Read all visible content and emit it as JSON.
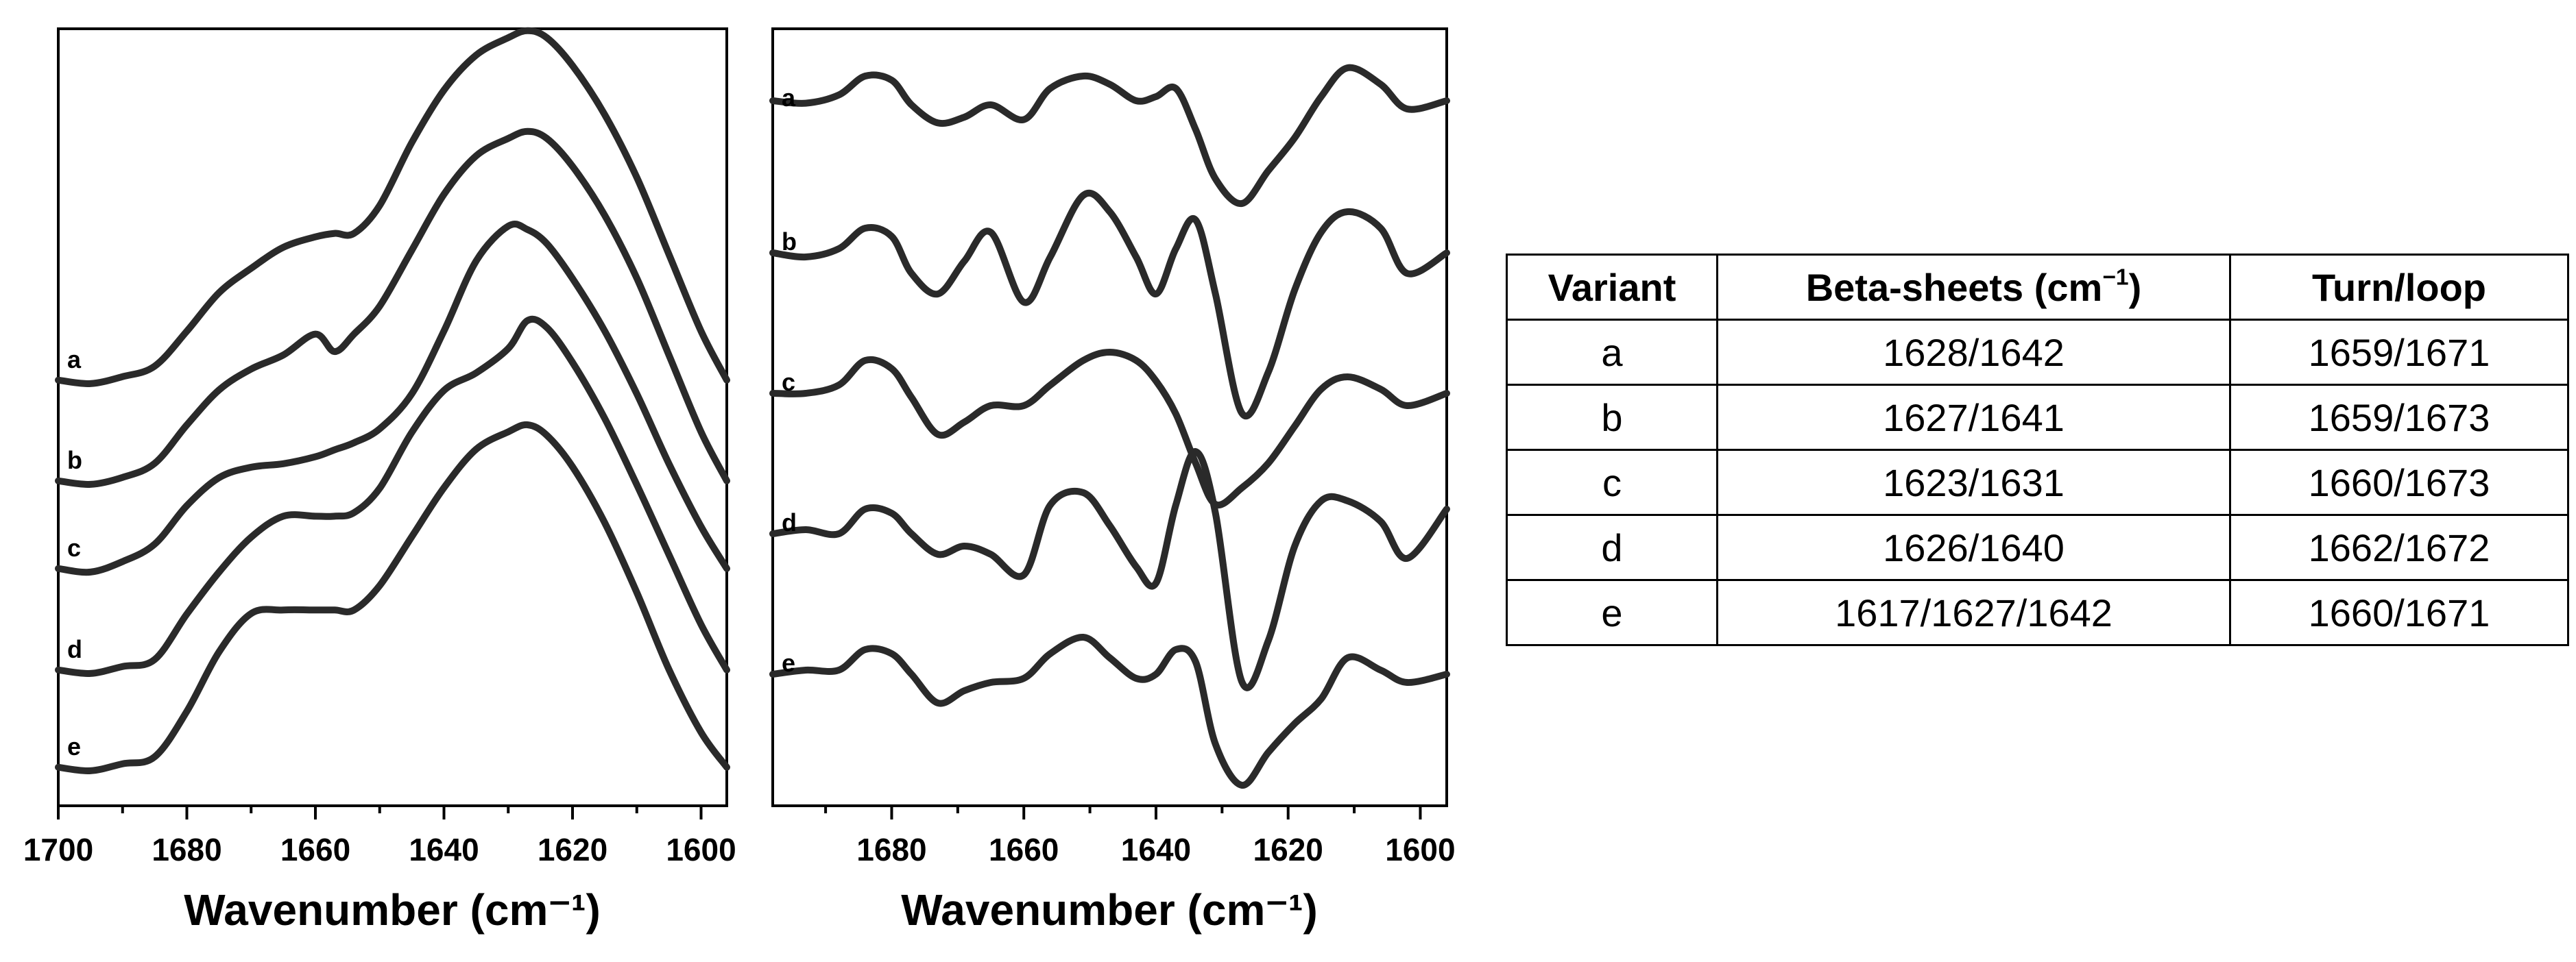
{
  "chart_data": [
    {
      "type": "line",
      "panel": "left",
      "xlabel": "Wavenumber (cm⁻¹)",
      "xlim": [
        1700,
        1596
      ],
      "x_ticks": [
        1700,
        1680,
        1660,
        1640,
        1620,
        1600
      ],
      "x": [
        1700,
        1695,
        1690,
        1685,
        1680,
        1675,
        1670,
        1665,
        1660,
        1657,
        1654,
        1650,
        1645,
        1640,
        1635,
        1630,
        1627,
        1624,
        1620,
        1615,
        1610,
        1605,
        1600,
        1596
      ],
      "series": [
        {
          "name": "a",
          "values": [
            0.02,
            0.01,
            0.03,
            0.06,
            0.16,
            0.27,
            0.34,
            0.4,
            0.43,
            0.44,
            0.44,
            0.52,
            0.7,
            0.85,
            0.95,
            1.0,
            1.02,
            1.0,
            0.92,
            0.78,
            0.6,
            0.38,
            0.16,
            0.02
          ]
        },
        {
          "name": "b",
          "values": [
            0.02,
            0.01,
            0.03,
            0.07,
            0.18,
            0.28,
            0.34,
            0.38,
            0.44,
            0.39,
            0.44,
            0.52,
            0.68,
            0.84,
            0.95,
            1.0,
            1.02,
            1.0,
            0.92,
            0.78,
            0.6,
            0.38,
            0.16,
            0.02
          ]
        },
        {
          "name": "c",
          "values": [
            0.02,
            0.01,
            0.04,
            0.09,
            0.2,
            0.28,
            0.31,
            0.32,
            0.34,
            0.36,
            0.38,
            0.42,
            0.52,
            0.7,
            0.9,
            1.0,
            0.99,
            0.95,
            0.85,
            0.7,
            0.52,
            0.32,
            0.14,
            0.02
          ]
        },
        {
          "name": "d",
          "values": [
            0.02,
            0.01,
            0.03,
            0.05,
            0.18,
            0.3,
            0.4,
            0.46,
            0.46,
            0.46,
            0.47,
            0.54,
            0.7,
            0.82,
            0.87,
            0.94,
            1.02,
            1.0,
            0.9,
            0.74,
            0.55,
            0.35,
            0.15,
            0.02
          ]
        },
        {
          "name": "e",
          "values": [
            0.02,
            0.01,
            0.03,
            0.05,
            0.18,
            0.35,
            0.46,
            0.47,
            0.47,
            0.47,
            0.47,
            0.54,
            0.68,
            0.82,
            0.93,
            0.98,
            1.0,
            0.97,
            0.88,
            0.72,
            0.52,
            0.3,
            0.12,
            0.02
          ]
        }
      ]
    },
    {
      "type": "line",
      "panel": "right",
      "xlabel": "Wavenumber (cm⁻¹)",
      "xlim": [
        1698,
        1596
      ],
      "x_ticks": [
        1680,
        1660,
        1640,
        1620,
        1600
      ],
      "x": [
        1698,
        1693,
        1688,
        1684,
        1680,
        1677,
        1673,
        1669,
        1665,
        1660,
        1656,
        1651,
        1647,
        1643,
        1640,
        1637,
        1634,
        1631,
        1627,
        1623,
        1619,
        1615,
        1611,
        1606,
        1602,
        1596
      ],
      "series": [
        {
          "name": "a",
          "values": [
            0.15,
            0.12,
            0.22,
            0.45,
            0.4,
            0.1,
            -0.12,
            -0.05,
            0.1,
            -0.08,
            0.3,
            0.45,
            0.35,
            0.15,
            0.2,
            0.3,
            -0.2,
            -0.8,
            -1.1,
            -0.7,
            -0.3,
            0.2,
            0.55,
            0.35,
            0.05,
            0.15
          ]
        },
        {
          "name": "b",
          "values": [
            0.05,
            0.0,
            0.1,
            0.35,
            0.25,
            -0.2,
            -0.45,
            -0.05,
            0.3,
            -0.55,
            0.0,
            0.75,
            0.55,
            0.0,
            -0.45,
            0.1,
            0.45,
            -0.45,
            -1.9,
            -1.4,
            -0.4,
            0.3,
            0.55,
            0.35,
            -0.2,
            0.05
          ]
        },
        {
          "name": "c",
          "values": [
            0.05,
            0.05,
            0.15,
            0.45,
            0.35,
            0.0,
            -0.45,
            -0.3,
            -0.1,
            -0.1,
            0.15,
            0.45,
            0.55,
            0.45,
            0.2,
            -0.2,
            -0.8,
            -1.3,
            -1.1,
            -0.8,
            -0.35,
            0.1,
            0.25,
            0.1,
            -0.1,
            0.05
          ]
        },
        {
          "name": "d",
          "values": [
            0.05,
            0.1,
            0.05,
            0.35,
            0.3,
            0.05,
            -0.2,
            -0.1,
            -0.2,
            -0.45,
            0.4,
            0.55,
            0.15,
            -0.35,
            -0.55,
            0.4,
            1.05,
            0.3,
            -1.75,
            -1.25,
            -0.1,
            0.45,
            0.45,
            0.2,
            -0.25,
            0.35
          ]
        },
        {
          "name": "e",
          "values": [
            0.05,
            0.1,
            0.1,
            0.35,
            0.3,
            0.05,
            -0.3,
            -0.15,
            -0.05,
            0.0,
            0.3,
            0.5,
            0.25,
            0.0,
            0.05,
            0.35,
            0.2,
            -0.8,
            -1.3,
            -0.9,
            -0.55,
            -0.25,
            0.25,
            0.1,
            -0.05,
            0.05
          ]
        }
      ]
    }
  ],
  "table": {
    "headers": [
      "Variant",
      "Beta-sheets (cm",
      "Turn/loop"
    ],
    "header_sup": "−1",
    "header_suffix": ")",
    "rows": [
      [
        "a",
        "1628/1642",
        "1659/1671"
      ],
      [
        "b",
        "1627/1641",
        "1659/1673"
      ],
      [
        "c",
        "1623/1631",
        "1660/1673"
      ],
      [
        "d",
        "1626/1640",
        "1662/1672"
      ],
      [
        "e",
        "1617/1627/1642",
        "1660/1671"
      ]
    ]
  }
}
